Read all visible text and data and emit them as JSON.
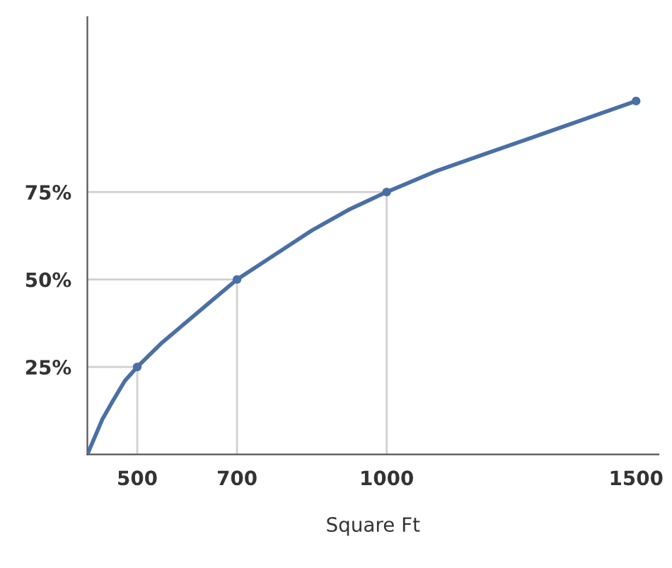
{
  "chart_data": {
    "type": "line",
    "xlabel": "Square Ft",
    "xlim": [
      400,
      1545
    ],
    "ylim": [
      0,
      125
    ],
    "xticks": [
      500,
      700,
      1000,
      1500
    ],
    "yticks": [
      {
        "value": 25,
        "label": "25%"
      },
      {
        "value": 50,
        "label": "50%"
      },
      {
        "value": 75,
        "label": "75%"
      }
    ],
    "grid": false,
    "legend": false,
    "series": [
      {
        "type": "line",
        "color": "#d0d0d0",
        "marker": "none",
        "x": [
          500,
          500
        ],
        "values": [
          0,
          25
        ]
      },
      {
        "type": "line",
        "color": "#d0d0d0",
        "marker": "none",
        "x": [
          400,
          500
        ],
        "values": [
          25,
          25
        ]
      },
      {
        "type": "line",
        "color": "#d0d0d0",
        "marker": "none",
        "x": [
          700,
          700
        ],
        "values": [
          0,
          50
        ]
      },
      {
        "type": "line",
        "color": "#d0d0d0",
        "marker": "none",
        "x": [
          400,
          700
        ],
        "values": [
          50,
          50
        ]
      },
      {
        "type": "line",
        "color": "#d0d0d0",
        "marker": "none",
        "x": [
          1000,
          1000
        ],
        "values": [
          0,
          75
        ]
      },
      {
        "type": "line",
        "color": "#d0d0d0",
        "marker": "none",
        "x": [
          400,
          1000
        ],
        "values": [
          75,
          75
        ]
      },
      {
        "color": "#4a6fa5",
        "marker": "none",
        "x": [
          400,
          415,
          430,
          450,
          475,
          500,
          550,
          600,
          650,
          700,
          775,
          850,
          925,
          1000,
          1100,
          1200,
          1300,
          1400,
          1500
        ],
        "values": [
          0,
          5,
          10,
          15,
          21,
          25,
          32,
          38,
          44,
          50,
          57,
          64,
          70,
          75,
          81,
          86,
          91,
          96,
          101
        ]
      },
      {
        "type": "scatter",
        "color": "#4a6fa5",
        "marker": "circle",
        "x": [
          500,
          700,
          1000,
          1500
        ],
        "values": [
          25,
          50,
          75,
          101
        ]
      }
    ]
  }
}
